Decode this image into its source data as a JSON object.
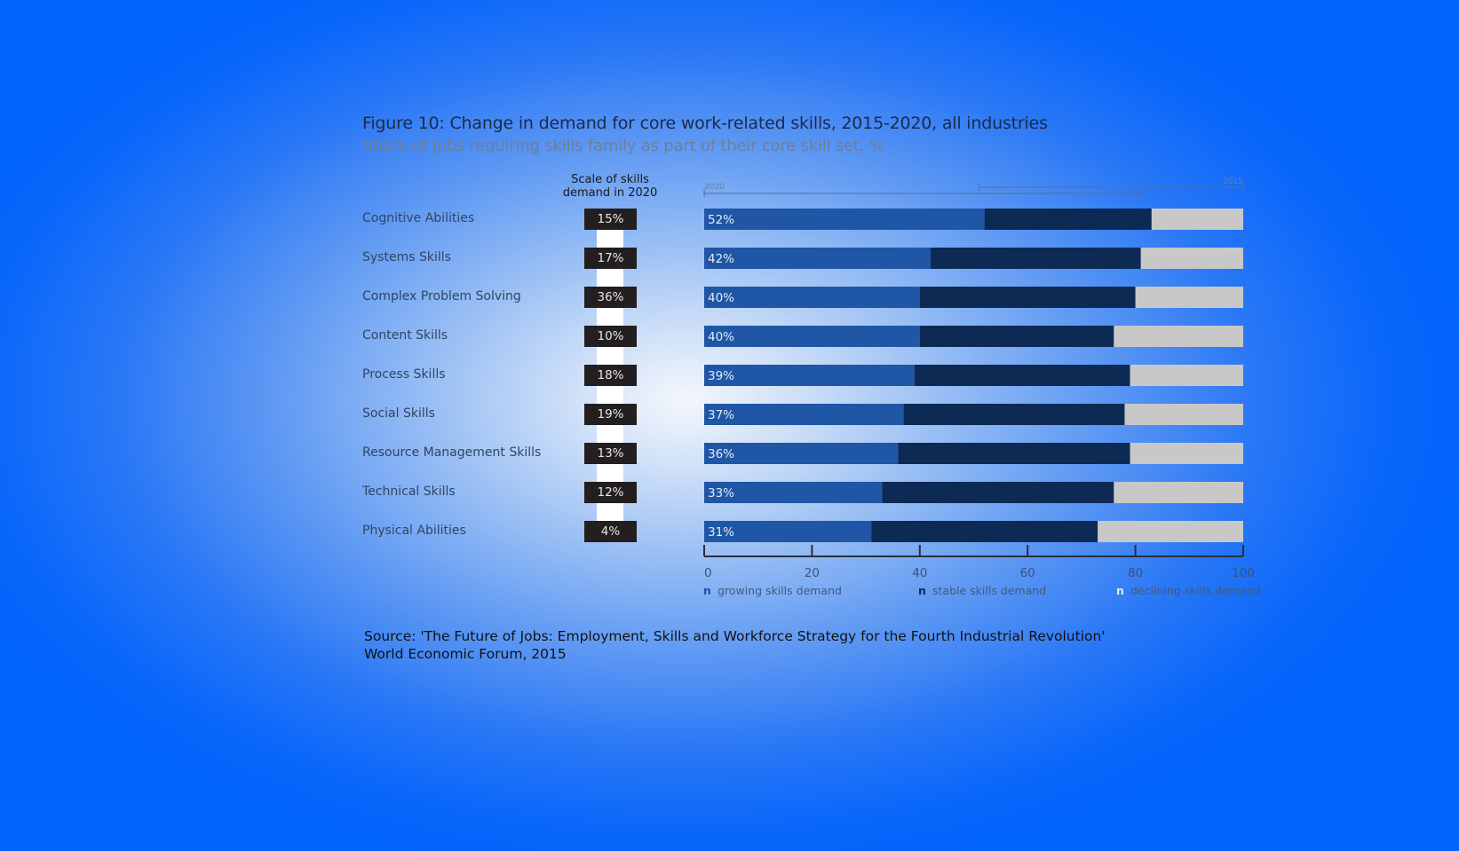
{
  "chart_data": {
    "type": "bar",
    "stacked": true,
    "orientation": "horizontal",
    "title": "Figure 10: Change in demand for core work-related skills, 2015-2020, all industries",
    "subtitle": "Share of jobs requiring skills family as part of their core skill set, %",
    "scale_header": "Scale of skills demand in 2020",
    "categories": [
      "Cognitive Abilities",
      "Systems Skills",
      "Complex Problem Solving",
      "Content Skills",
      "Process Skills",
      "Social Skills",
      "Resource Management Skills",
      "Technical Skills",
      "Physical Abilities"
    ],
    "scale_values": [
      "15%",
      "17%",
      "36%",
      "10%",
      "18%",
      "19%",
      "13%",
      "12%",
      "4%"
    ],
    "series": [
      {
        "name": "growing skills demand",
        "color": "#1f56a5",
        "values": [
          52,
          42,
          40,
          40,
          39,
          37,
          36,
          33,
          31
        ]
      },
      {
        "name": "stable skills demand",
        "color": "#0d2a54",
        "values": [
          31,
          39,
          40,
          36,
          40,
          41,
          43,
          43,
          42
        ]
      },
      {
        "name": "declining skills demand",
        "color": "#c8c8c8",
        "values": [
          17,
          19,
          20,
          24,
          21,
          22,
          21,
          24,
          27
        ]
      }
    ],
    "value_labels": [
      "52%",
      "42%",
      "40%",
      "40%",
      "39%",
      "37%",
      "36%",
      "33%",
      "31%"
    ],
    "xticks": [
      "0",
      "20",
      "40",
      "60",
      "80",
      "100"
    ],
    "xlim": [
      0,
      100
    ],
    "bracket_labels": [
      "2020",
      "2015"
    ],
    "legend_position": "bottom",
    "grid": false
  },
  "source": {
    "line1": "Source: 'The Future of Jobs: Employment, Skills and Workforce Strategy for the Fourth Industrial Revolution'",
    "line2": "World Economic Forum, 2015"
  },
  "legend_marker": "n"
}
